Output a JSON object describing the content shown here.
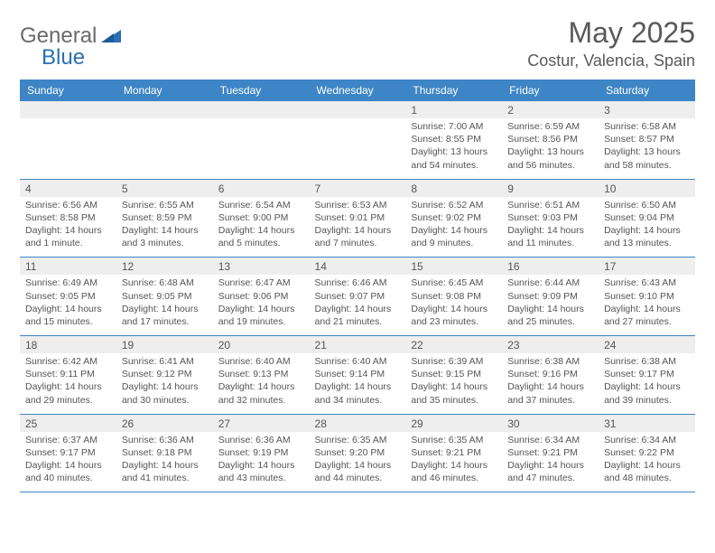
{
  "logo": {
    "text1": "General",
    "text2": "Blue"
  },
  "title": "May 2025",
  "location": "Costur, Valencia, Spain",
  "colors": {
    "header_bg": "#3d85c6",
    "header_text": "#ffffff",
    "num_bg": "#eeeeee",
    "text": "#555555",
    "divider": "#3d85c6",
    "logo_gray": "#6a6a6a",
    "logo_blue": "#2a6fb5"
  },
  "day_headers": [
    "Sunday",
    "Monday",
    "Tuesday",
    "Wednesday",
    "Thursday",
    "Friday",
    "Saturday"
  ],
  "weeks": [
    [
      null,
      null,
      null,
      null,
      {
        "n": "1",
        "sr": "Sunrise: 7:00 AM",
        "ss": "Sunset: 8:55 PM",
        "d1": "Daylight: 13 hours",
        "d2": "and 54 minutes."
      },
      {
        "n": "2",
        "sr": "Sunrise: 6:59 AM",
        "ss": "Sunset: 8:56 PM",
        "d1": "Daylight: 13 hours",
        "d2": "and 56 minutes."
      },
      {
        "n": "3",
        "sr": "Sunrise: 6:58 AM",
        "ss": "Sunset: 8:57 PM",
        "d1": "Daylight: 13 hours",
        "d2": "and 58 minutes."
      }
    ],
    [
      {
        "n": "4",
        "sr": "Sunrise: 6:56 AM",
        "ss": "Sunset: 8:58 PM",
        "d1": "Daylight: 14 hours",
        "d2": "and 1 minute."
      },
      {
        "n": "5",
        "sr": "Sunrise: 6:55 AM",
        "ss": "Sunset: 8:59 PM",
        "d1": "Daylight: 14 hours",
        "d2": "and 3 minutes."
      },
      {
        "n": "6",
        "sr": "Sunrise: 6:54 AM",
        "ss": "Sunset: 9:00 PM",
        "d1": "Daylight: 14 hours",
        "d2": "and 5 minutes."
      },
      {
        "n": "7",
        "sr": "Sunrise: 6:53 AM",
        "ss": "Sunset: 9:01 PM",
        "d1": "Daylight: 14 hours",
        "d2": "and 7 minutes."
      },
      {
        "n": "8",
        "sr": "Sunrise: 6:52 AM",
        "ss": "Sunset: 9:02 PM",
        "d1": "Daylight: 14 hours",
        "d2": "and 9 minutes."
      },
      {
        "n": "9",
        "sr": "Sunrise: 6:51 AM",
        "ss": "Sunset: 9:03 PM",
        "d1": "Daylight: 14 hours",
        "d2": "and 11 minutes."
      },
      {
        "n": "10",
        "sr": "Sunrise: 6:50 AM",
        "ss": "Sunset: 9:04 PM",
        "d1": "Daylight: 14 hours",
        "d2": "and 13 minutes."
      }
    ],
    [
      {
        "n": "11",
        "sr": "Sunrise: 6:49 AM",
        "ss": "Sunset: 9:05 PM",
        "d1": "Daylight: 14 hours",
        "d2": "and 15 minutes."
      },
      {
        "n": "12",
        "sr": "Sunrise: 6:48 AM",
        "ss": "Sunset: 9:05 PM",
        "d1": "Daylight: 14 hours",
        "d2": "and 17 minutes."
      },
      {
        "n": "13",
        "sr": "Sunrise: 6:47 AM",
        "ss": "Sunset: 9:06 PM",
        "d1": "Daylight: 14 hours",
        "d2": "and 19 minutes."
      },
      {
        "n": "14",
        "sr": "Sunrise: 6:46 AM",
        "ss": "Sunset: 9:07 PM",
        "d1": "Daylight: 14 hours",
        "d2": "and 21 minutes."
      },
      {
        "n": "15",
        "sr": "Sunrise: 6:45 AM",
        "ss": "Sunset: 9:08 PM",
        "d1": "Daylight: 14 hours",
        "d2": "and 23 minutes."
      },
      {
        "n": "16",
        "sr": "Sunrise: 6:44 AM",
        "ss": "Sunset: 9:09 PM",
        "d1": "Daylight: 14 hours",
        "d2": "and 25 minutes."
      },
      {
        "n": "17",
        "sr": "Sunrise: 6:43 AM",
        "ss": "Sunset: 9:10 PM",
        "d1": "Daylight: 14 hours",
        "d2": "and 27 minutes."
      }
    ],
    [
      {
        "n": "18",
        "sr": "Sunrise: 6:42 AM",
        "ss": "Sunset: 9:11 PM",
        "d1": "Daylight: 14 hours",
        "d2": "and 29 minutes."
      },
      {
        "n": "19",
        "sr": "Sunrise: 6:41 AM",
        "ss": "Sunset: 9:12 PM",
        "d1": "Daylight: 14 hours",
        "d2": "and 30 minutes."
      },
      {
        "n": "20",
        "sr": "Sunrise: 6:40 AM",
        "ss": "Sunset: 9:13 PM",
        "d1": "Daylight: 14 hours",
        "d2": "and 32 minutes."
      },
      {
        "n": "21",
        "sr": "Sunrise: 6:40 AM",
        "ss": "Sunset: 9:14 PM",
        "d1": "Daylight: 14 hours",
        "d2": "and 34 minutes."
      },
      {
        "n": "22",
        "sr": "Sunrise: 6:39 AM",
        "ss": "Sunset: 9:15 PM",
        "d1": "Daylight: 14 hours",
        "d2": "and 35 minutes."
      },
      {
        "n": "23",
        "sr": "Sunrise: 6:38 AM",
        "ss": "Sunset: 9:16 PM",
        "d1": "Daylight: 14 hours",
        "d2": "and 37 minutes."
      },
      {
        "n": "24",
        "sr": "Sunrise: 6:38 AM",
        "ss": "Sunset: 9:17 PM",
        "d1": "Daylight: 14 hours",
        "d2": "and 39 minutes."
      }
    ],
    [
      {
        "n": "25",
        "sr": "Sunrise: 6:37 AM",
        "ss": "Sunset: 9:17 PM",
        "d1": "Daylight: 14 hours",
        "d2": "and 40 minutes."
      },
      {
        "n": "26",
        "sr": "Sunrise: 6:36 AM",
        "ss": "Sunset: 9:18 PM",
        "d1": "Daylight: 14 hours",
        "d2": "and 41 minutes."
      },
      {
        "n": "27",
        "sr": "Sunrise: 6:36 AM",
        "ss": "Sunset: 9:19 PM",
        "d1": "Daylight: 14 hours",
        "d2": "and 43 minutes."
      },
      {
        "n": "28",
        "sr": "Sunrise: 6:35 AM",
        "ss": "Sunset: 9:20 PM",
        "d1": "Daylight: 14 hours",
        "d2": "and 44 minutes."
      },
      {
        "n": "29",
        "sr": "Sunrise: 6:35 AM",
        "ss": "Sunset: 9:21 PM",
        "d1": "Daylight: 14 hours",
        "d2": "and 46 minutes."
      },
      {
        "n": "30",
        "sr": "Sunrise: 6:34 AM",
        "ss": "Sunset: 9:21 PM",
        "d1": "Daylight: 14 hours",
        "d2": "and 47 minutes."
      },
      {
        "n": "31",
        "sr": "Sunrise: 6:34 AM",
        "ss": "Sunset: 9:22 PM",
        "d1": "Daylight: 14 hours",
        "d2": "and 48 minutes."
      }
    ]
  ]
}
